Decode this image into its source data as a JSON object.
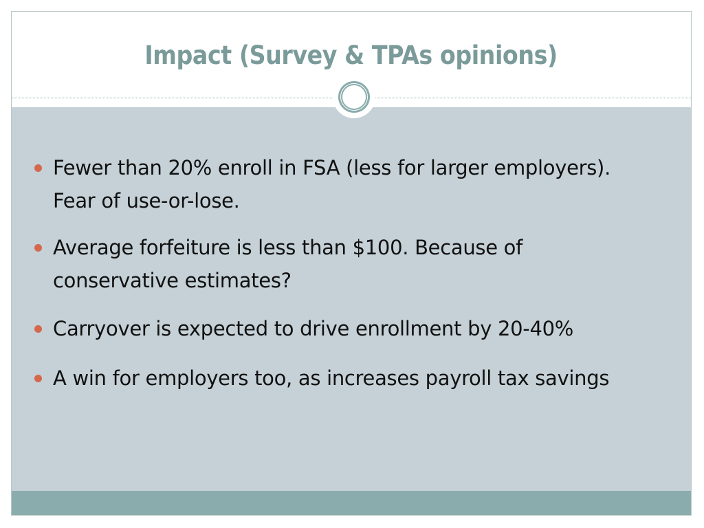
{
  "slide": {
    "title": "Impact (Survey & TPAs opinions)",
    "bullets": [
      {
        "text": "Fewer than 20% enroll in FSA (less for larger employers).\nFear of use-or-lose."
      },
      {
        "text": "Average forfeiture is less than $100. Because of\nconservative estimates?"
      },
      {
        "text": "Carryover is expected to drive enrollment by 20-40%"
      },
      {
        "text": "A win for employers too, as increases payroll tax savings"
      }
    ]
  },
  "colors": {
    "title": "#7a9b9a",
    "content_background": "#c5d1d7",
    "footer_band": "#8aacac",
    "bullet_marker": "#d5674c",
    "ornament_ring": "#8aacac"
  }
}
